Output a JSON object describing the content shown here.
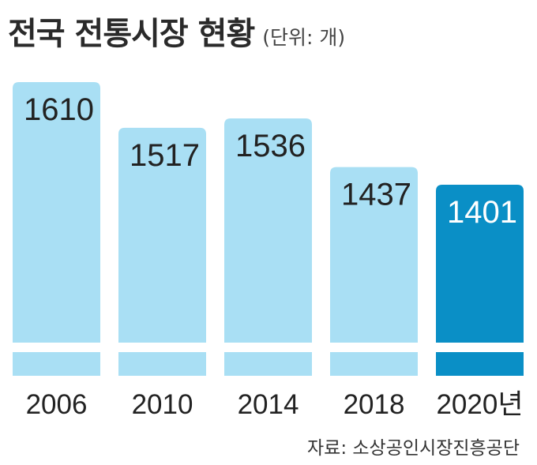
{
  "header": {
    "title": "전국 전통시장 현황",
    "unit": "(단위: 개)"
  },
  "footer": {
    "source": "자료: 소상공인시장진흥공단"
  },
  "colors": {
    "bar": "#a9dff4",
    "highlight": "#0a8fc6",
    "text": "#222222",
    "highlight_text": "#ffffff"
  },
  "chart_data": {
    "type": "bar",
    "title": "전국 전통시장 현황",
    "unit": "(단위: 개)",
    "categories": [
      "2006",
      "2010",
      "2014",
      "2018",
      "2020년"
    ],
    "values": [
      1610,
      1517,
      1536,
      1437,
      1401
    ],
    "highlight_index": 4,
    "ylim": [
      1300,
      1610
    ],
    "axis_break": true,
    "grid": false,
    "legend": "none"
  }
}
